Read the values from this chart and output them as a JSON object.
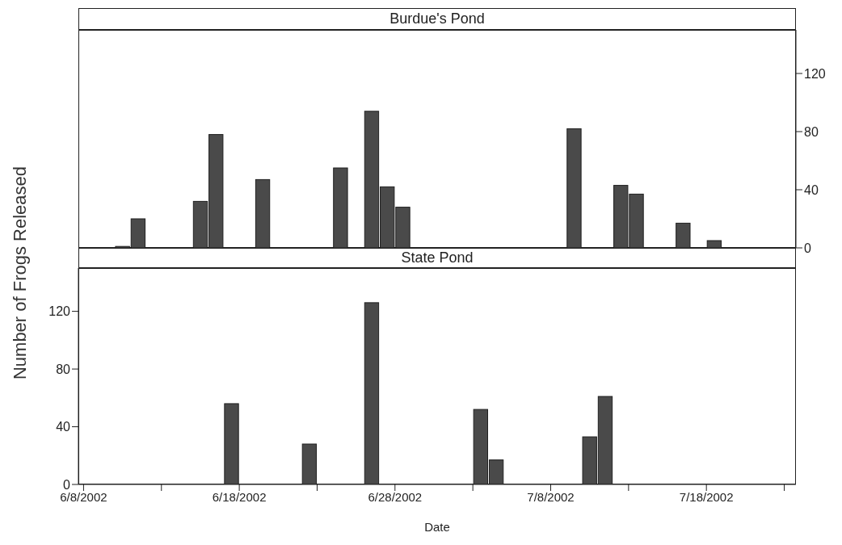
{
  "chart_data": [
    {
      "type": "bar",
      "title": "Burdue's Pond",
      "tick_labels": "y",
      "series": [
        {
          "color": "#4a4a4a",
          "axis": "y2",
          "x": [
            "2002-06-10T12:00",
            "2002-06-11T12:00",
            "2002-06-15T12:00",
            "2002-06-16T12:00",
            "2002-06-19T12:00",
            "2002-06-24T12:00",
            "2002-06-26T12:00",
            "2002-06-27T12:00",
            "2002-06-28T12:00",
            "2002-07-09T12:00",
            "2002-07-12T12:00",
            "2002-07-13T12:00",
            "2002-07-16T12:00",
            "2002-07-18T12:00"
          ],
          "values": [
            1,
            20,
            32,
            78,
            47,
            55,
            94,
            42,
            28,
            82,
            43,
            37,
            17,
            5
          ]
        }
      ],
      "xlim": [
        "2002-06-07T16:00",
        "2002-07-23T18:00"
      ],
      "y2lim": [
        0,
        150
      ],
      "y2ticks": [
        0,
        40,
        80,
        120
      ]
    },
    {
      "type": "bar",
      "title": "State Pond",
      "xlabel": "Date",
      "ylabel": "Number of Frogs Released",
      "series": [
        {
          "color": "#4a4a4a",
          "x": [
            "2002-06-17T12:00",
            "2002-06-22T12:00",
            "2002-06-26T12:00",
            "2002-07-03T12:00",
            "2002-07-04T12:00",
            "2002-07-10T12:00",
            "2002-07-11T12:00"
          ],
          "values": [
            56,
            28,
            126,
            52,
            17,
            33,
            61
          ]
        }
      ],
      "xlim": [
        "2002-06-07T16:00",
        "2002-07-23T18:00"
      ],
      "xticks": [
        {
          "value": "2002-06-08",
          "label": "6/8/2002"
        },
        {
          "value": "2002-06-13",
          "label": null
        },
        {
          "value": "2002-06-18",
          "label": "6/18/2002"
        },
        {
          "value": "2002-06-23",
          "label": null
        },
        {
          "value": "2002-06-28",
          "label": "6/28/2002"
        },
        {
          "value": "2002-07-03",
          "label": null
        },
        {
          "value": "2002-07-08",
          "label": "7/8/2002"
        },
        {
          "value": "2002-07-13",
          "label": null
        },
        {
          "value": "2002-07-18",
          "label": "7/18/2002"
        },
        {
          "value": "2002-07-23",
          "label": null
        }
      ],
      "ylim": [
        0,
        150
      ],
      "yticks": [
        0,
        40,
        80,
        120
      ]
    }
  ]
}
